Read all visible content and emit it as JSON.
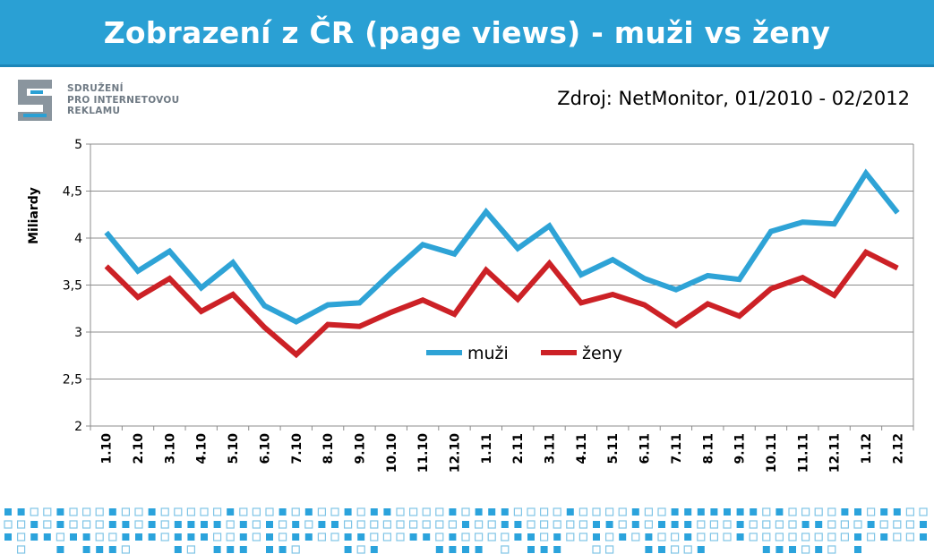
{
  "title": "Zobrazení z ČR (page views) - muži vs ženy",
  "source": "Zdroj: NetMonitor, 01/2010 - 02/2012",
  "logo": {
    "lines": [
      "SDRUŽENÍ",
      "PRO INTERNETOVOU",
      "REKLAMU"
    ]
  },
  "colors": {
    "header": "#2aa0d4",
    "muzi": "#2ea3d6",
    "zeny": "#cc2126",
    "square_fill": "#2ba3dc",
    "square_outline": "#7fc4e6"
  },
  "chart_data": {
    "type": "line",
    "ylabel": "Miliardy",
    "xlabel": "",
    "ylim": [
      2,
      5
    ],
    "yticks": [
      "2",
      "2,5",
      "3",
      "3,5",
      "4",
      "4,5",
      "5"
    ],
    "grid": true,
    "legend_position": "center",
    "categories": [
      "1.10",
      "2.10",
      "3.10",
      "4.10",
      "5.10",
      "6.10",
      "7.10",
      "8.10",
      "9.10",
      "10.10",
      "11.10",
      "12.10",
      "1.11",
      "2.11",
      "3.11",
      "4.11",
      "5.11",
      "6.11",
      "7.11",
      "8.11",
      "9.11",
      "10.11",
      "11.11",
      "12.11",
      "1.12",
      "2.12"
    ],
    "series": [
      {
        "name": "muži",
        "color": "#2ea3d6",
        "values": [
          4.06,
          3.65,
          3.86,
          3.47,
          3.74,
          3.28,
          3.11,
          3.29,
          3.31,
          3.63,
          3.93,
          3.83,
          4.28,
          3.89,
          4.13,
          3.61,
          3.77,
          3.57,
          3.45,
          3.6,
          3.56,
          4.07,
          4.17,
          4.15,
          4.69,
          4.27
        ]
      },
      {
        "name": "ženy",
        "color": "#cc2126",
        "values": [
          3.7,
          3.37,
          3.57,
          3.22,
          3.4,
          3.05,
          2.76,
          3.08,
          3.06,
          3.21,
          3.34,
          3.19,
          3.66,
          3.35,
          3.73,
          3.31,
          3.4,
          3.29,
          3.07,
          3.3,
          3.17,
          3.46,
          3.58,
          3.39,
          3.85,
          3.68
        ]
      }
    ]
  }
}
